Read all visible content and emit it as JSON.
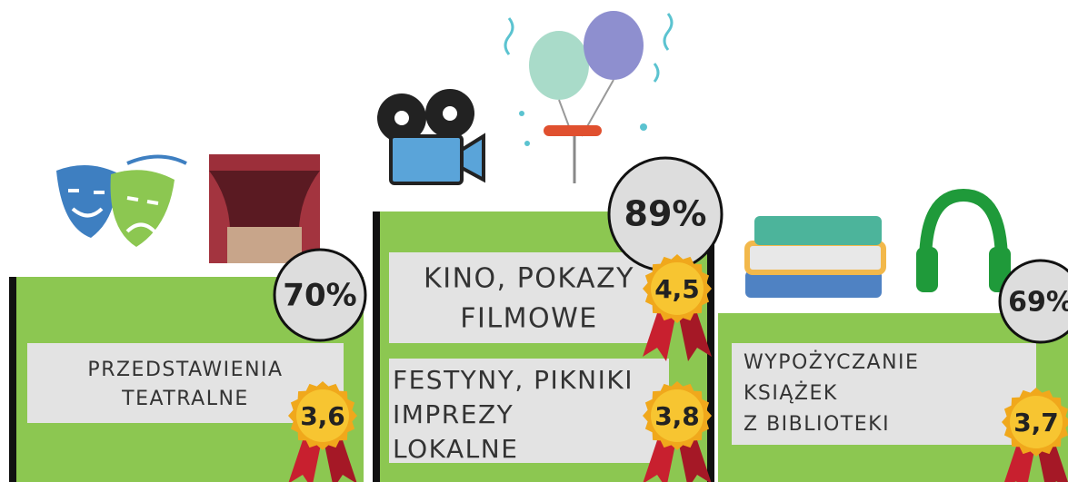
{
  "blocks": [
    {
      "percent": "70%",
      "entries": [
        {
          "lines": [
            "PRZEDSTAWIENIA",
            "TEATRALNE"
          ],
          "rating": "3,6"
        }
      ]
    },
    {
      "percent": "89%",
      "entries": [
        {
          "lines": [
            "KINO, POKAZY",
            "FILMOWE"
          ],
          "rating": "4,5"
        },
        {
          "lines": [
            "FESTYNY, PIKNIKI",
            "IMPREZY",
            "LOKALNE"
          ],
          "rating": "3,8"
        }
      ]
    },
    {
      "percent": "69%",
      "entries": [
        {
          "lines": [
            "WYPOŻYCZANIE",
            "KSIĄŻEK",
            "Z BIBLIOTEKI"
          ],
          "rating": "3,7"
        }
      ]
    }
  ]
}
